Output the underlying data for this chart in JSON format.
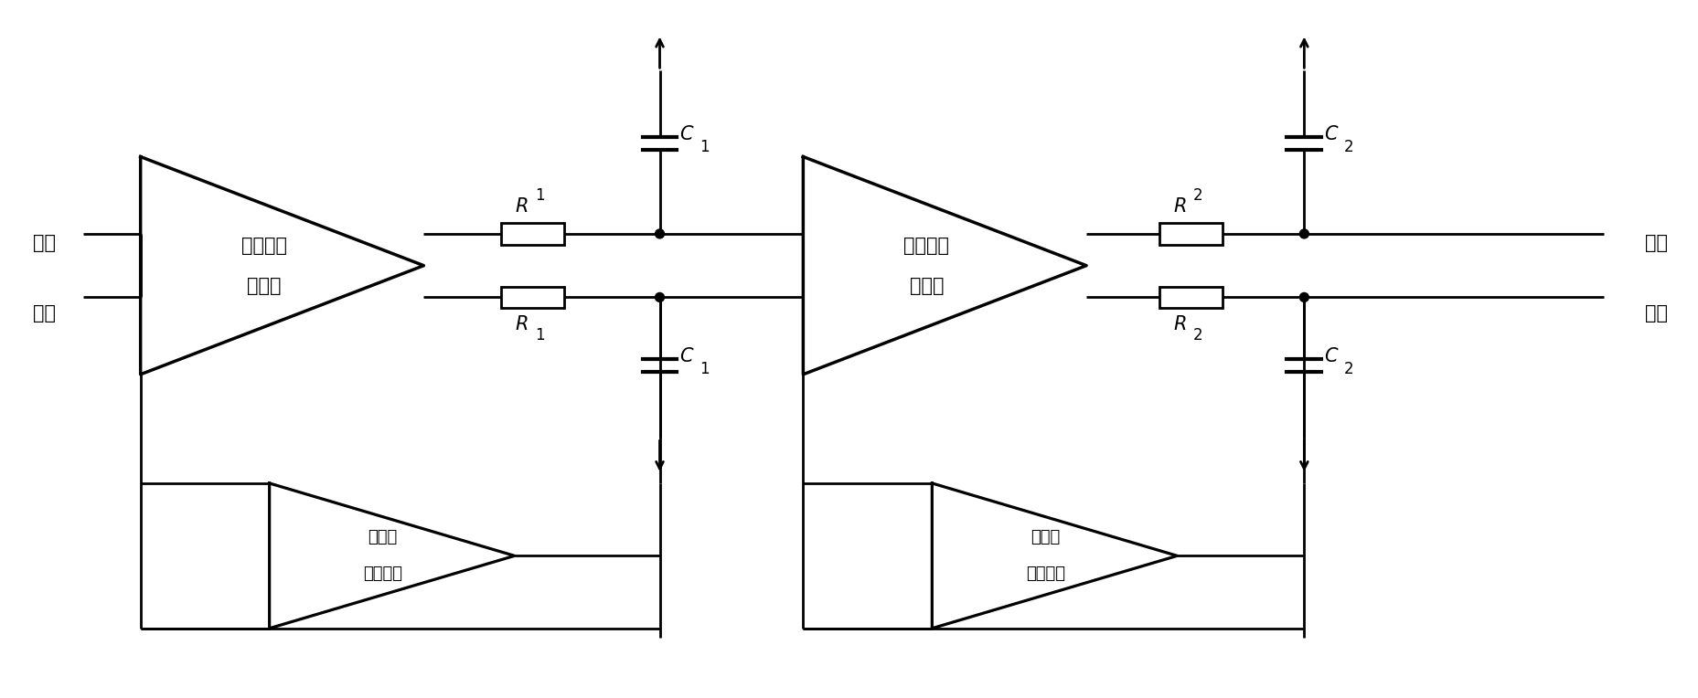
{
  "background_color": "#ffffff",
  "line_color": "#000000",
  "lw": 2.0,
  "fig_width": 18.58,
  "fig_height": 7.64,
  "labels": {
    "diff_input_1": "差分",
    "diff_input_2": "输入",
    "diff_output_1": "差分",
    "diff_output_2": "输出",
    "amp1_1": "主放大器",
    "amp1_2": "第一级",
    "amp2_1": "主放大器",
    "amp2_2": "第二级",
    "cmfb1_1": "第一级",
    "cmfb1_2": "共模反馈",
    "cmfb2_1": "第二级",
    "cmfb2_2": "共模反馈"
  }
}
